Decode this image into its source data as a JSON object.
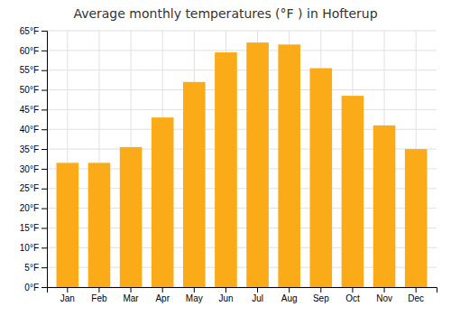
{
  "chart_data": {
    "type": "bar",
    "title": "Average monthly temperatures (°F ) in Hofterup",
    "categories": [
      "Jan",
      "Feb",
      "Mar",
      "Apr",
      "May",
      "Jun",
      "Jul",
      "Aug",
      "Sep",
      "Oct",
      "Nov",
      "Dec"
    ],
    "values": [
      31.5,
      31.5,
      35.5,
      43.0,
      52.0,
      59.5,
      62.0,
      61.5,
      55.5,
      48.5,
      41.0,
      35.0
    ],
    "color": "#FBAB18",
    "ylim": [
      0,
      65
    ],
    "yticks": [
      {
        "value": 0,
        "label": "0°F"
      },
      {
        "value": 5,
        "label": "5°F"
      },
      {
        "value": 10,
        "label": "10°F"
      },
      {
        "value": 15,
        "label": "15°F"
      },
      {
        "value": 20,
        "label": "20°F"
      },
      {
        "value": 25,
        "label": "25°F"
      },
      {
        "value": 30,
        "label": "30°F"
      },
      {
        "value": 35,
        "label": "35°F"
      },
      {
        "value": 40,
        "label": "40°F"
      },
      {
        "value": 45,
        "label": "45°F"
      },
      {
        "value": 50,
        "label": "50°F"
      },
      {
        "value": 55,
        "label": "55°F"
      },
      {
        "value": 60,
        "label": "60°F"
      },
      {
        "value": 65,
        "label": "65°F"
      }
    ],
    "grid": true
  }
}
